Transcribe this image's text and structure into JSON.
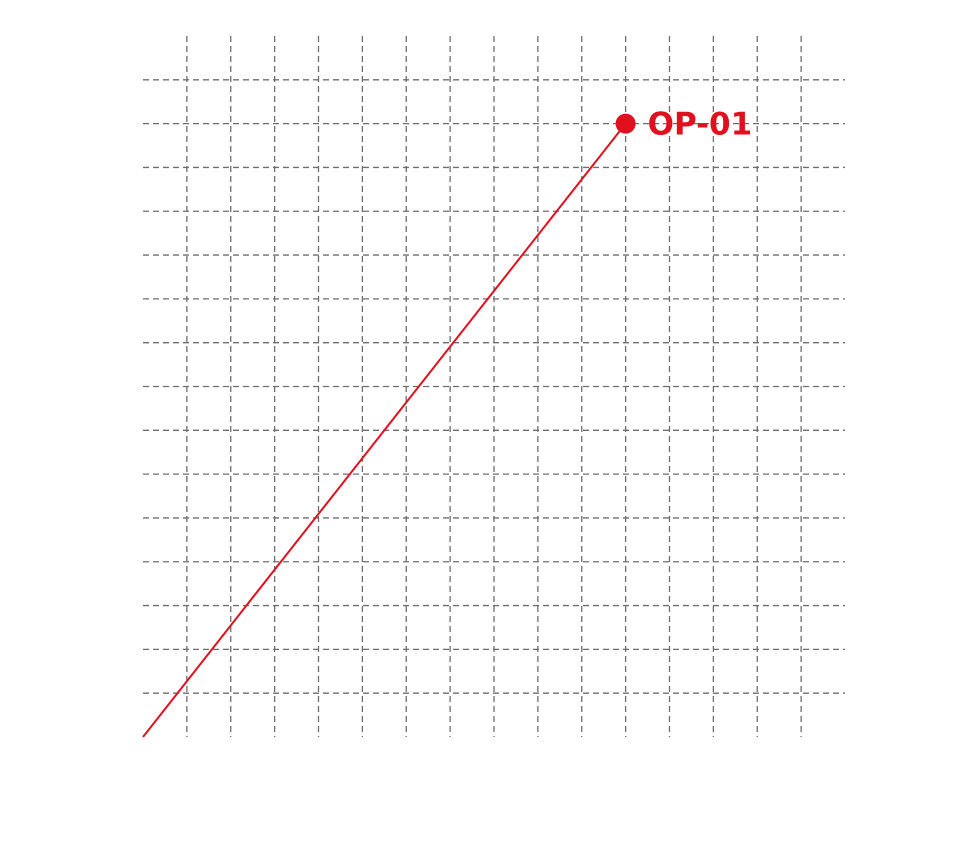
{
  "chart_data": {
    "type": "line",
    "title": "",
    "xlabel": "",
    "ylabel": "",
    "xlim": [
      0,
      16
    ],
    "ylim": [
      0,
      16
    ],
    "grid": true,
    "x_gridlines": [
      1,
      2,
      3,
      4,
      5,
      6,
      7,
      8,
      9,
      10,
      11,
      12,
      13,
      14,
      15
    ],
    "y_gridlines": [
      1,
      2,
      3,
      4,
      5,
      6,
      7,
      8,
      9,
      10,
      11,
      12,
      13,
      14,
      15
    ],
    "series": [
      {
        "color": "#e0101e",
        "points": [
          {
            "x": 0,
            "y": 0
          },
          {
            "x": 11,
            "y": 14
          }
        ]
      }
    ],
    "annotations": [
      {
        "text": "OP-01",
        "x": 11,
        "y": 14,
        "color": "#e0101e"
      }
    ]
  }
}
